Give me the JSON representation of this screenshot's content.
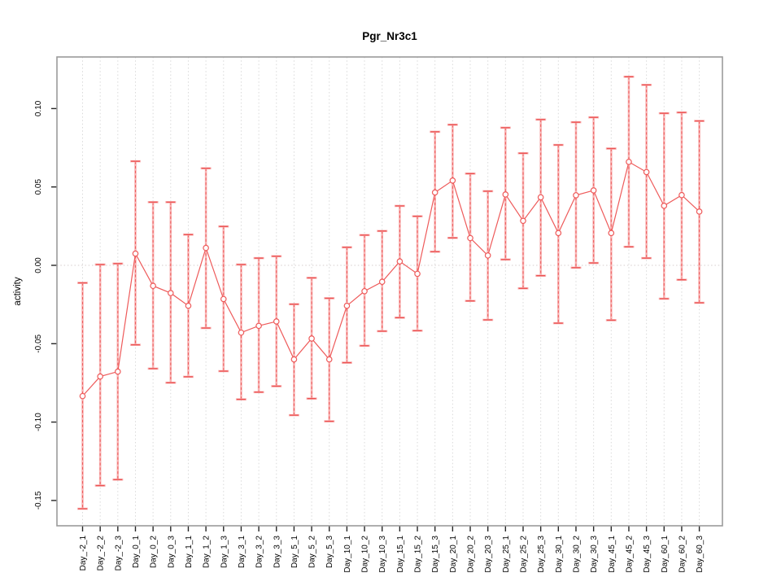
{
  "chart_data": {
    "type": "scatter",
    "title": "Pgr_Nr3c1",
    "xlabel": "",
    "ylabel": "activity",
    "ylim": [
      -0.166,
      0.133
    ],
    "yticks": [
      0.1,
      0.05,
      0.0,
      -0.05,
      -0.1,
      -0.15
    ],
    "ytick_labels": [
      "0.10",
      "0.05",
      "0.00",
      "-0.05",
      "-0.10",
      "-0.15"
    ],
    "grid": "vertical dotted gridline at every category; dotted horizontal line at y=0",
    "legend_position": "none",
    "marker": "open-circle",
    "error_bars": true,
    "categories": [
      "Day_-2_1",
      "Day_-2_2",
      "Day_-2_3",
      "Day_0_1",
      "Day_0_2",
      "Day_0_3",
      "Day_1_1",
      "Day_1_2",
      "Day_1_3",
      "Day_3_1",
      "Day_3_2",
      "Day_3_3",
      "Day_5_1",
      "Day_5_2",
      "Day_5_3",
      "Day_10_1",
      "Day_10_2",
      "Day_10_3",
      "Day_15_1",
      "Day_15_2",
      "Day_15_3",
      "Day_20_1",
      "Day_20_2",
      "Day_20_3",
      "Day_25_1",
      "Day_25_2",
      "Day_25_3",
      "Day_30_1",
      "Day_30_2",
      "Day_30_3",
      "Day_45_1",
      "Day_45_2",
      "Day_45_3",
      "Day_60_1",
      "Day_60_2",
      "Day_60_3"
    ],
    "series": [
      {
        "name": "activity",
        "values": [
          -0.0834,
          -0.0709,
          -0.0678,
          0.0075,
          -0.0131,
          -0.0177,
          -0.0258,
          0.0111,
          -0.0215,
          -0.0429,
          -0.0386,
          -0.0358,
          -0.06,
          -0.0467,
          -0.06,
          -0.0258,
          -0.0165,
          -0.0105,
          0.0025,
          -0.0054,
          0.0465,
          0.0541,
          0.0174,
          0.0063,
          0.0452,
          0.0284,
          0.0434,
          0.0206,
          0.0447,
          0.0478,
          0.0206,
          0.066,
          0.0595,
          0.038,
          0.0448,
          0.0343
        ],
        "error_low": [
          -0.1553,
          -0.1405,
          -0.1367,
          -0.0507,
          -0.0659,
          -0.0749,
          -0.0711,
          -0.04,
          -0.0675,
          -0.0855,
          -0.0809,
          -0.0771,
          -0.0956,
          -0.085,
          -0.0995,
          -0.0621,
          -0.0513,
          -0.042,
          -0.0334,
          -0.0417,
          0.0087,
          0.0175,
          -0.0227,
          -0.0348,
          0.0037,
          -0.0147,
          -0.0066,
          -0.0369,
          -0.0015,
          0.0015,
          -0.035,
          0.0118,
          0.0046,
          -0.0213,
          -0.0092,
          -0.0239
        ],
        "error_high": [
          -0.0112,
          0.0005,
          0.0011,
          0.0664,
          0.0403,
          0.0403,
          0.0196,
          0.0619,
          0.0248,
          0.0005,
          0.0046,
          0.0058,
          -0.0248,
          -0.008,
          -0.021,
          0.0115,
          0.0193,
          0.0219,
          0.0379,
          0.0313,
          0.0852,
          0.0897,
          0.0585,
          0.0473,
          0.0878,
          0.0715,
          0.093,
          0.0768,
          0.0913,
          0.0944,
          0.0745,
          0.1203,
          0.1151,
          0.097,
          0.0975,
          0.0921
        ]
      }
    ],
    "colors": {
      "point": "#ee5a5a",
      "series_line": "#ee5a5a",
      "error_bar_solid": "#f8b4b4",
      "error_bar_dash": "#ec5353",
      "error_cap": "#ec5353",
      "zero_line": "#ded6d6",
      "gridline": "#d9d9d9",
      "plot_border": "#9b9b9b",
      "tick": "#262626",
      "text": "#000000",
      "background": "#ffffff"
    }
  }
}
